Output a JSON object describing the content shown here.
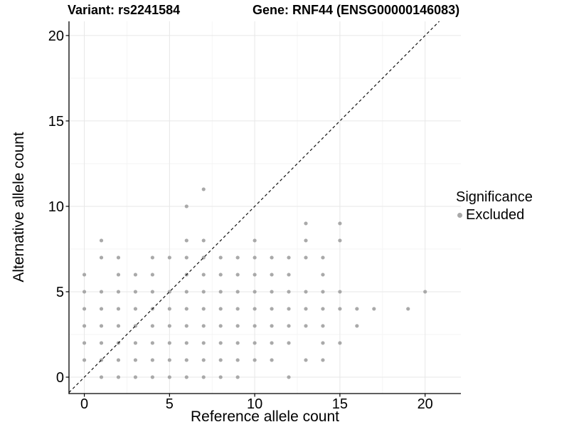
{
  "header": {
    "variant_title": "Variant: rs2241584",
    "gene_title": "Gene: RNF44 (ENSG00000146083)"
  },
  "legend": {
    "title": "Significance",
    "items": [
      {
        "label": "Excluded",
        "color": "#a9a9a9"
      }
    ],
    "position": "right"
  },
  "colors": {
    "point": "#a9a9a9",
    "axis": "#000000",
    "tick_label": "#000000",
    "grid_major": "#e7e7e7",
    "grid_minor": "#f3f3f3",
    "reference_line": "#111111",
    "background": "#ffffff"
  },
  "chart_data": {
    "type": "scatter",
    "title": "Variant: rs2241584 | Gene: RNF44 (ENSG00000146083)",
    "xlabel": "Reference allele count",
    "ylabel": "Alternative allele count",
    "xlim": [
      -0.9,
      22.1
    ],
    "ylim": [
      -0.96,
      20.83
    ],
    "x_ticks": [
      0,
      5,
      10,
      15,
      20
    ],
    "y_ticks": [
      0,
      5,
      10,
      15,
      20
    ],
    "x_minor_ticks": [
      2.5,
      7.5,
      12.5,
      17.5
    ],
    "y_minor_ticks": [
      2.5,
      7.5,
      12.5,
      17.5
    ],
    "grid": true,
    "legend_position": "right",
    "reference_line": {
      "type": "identity",
      "slope": 1,
      "intercept": 0,
      "style": "dashed"
    },
    "series": [
      {
        "name": "Excluded",
        "color": "#a9a9a9",
        "points": [
          [
            1,
            0
          ],
          [
            2,
            0
          ],
          [
            3,
            0
          ],
          [
            4,
            0
          ],
          [
            5,
            0
          ],
          [
            6,
            0
          ],
          [
            7,
            0
          ],
          [
            8,
            0
          ],
          [
            9,
            0
          ],
          [
            12,
            0
          ],
          [
            0,
            1
          ],
          [
            1,
            1
          ],
          [
            2,
            1
          ],
          [
            3,
            1
          ],
          [
            4,
            1
          ],
          [
            5,
            1
          ],
          [
            6,
            1
          ],
          [
            7,
            1
          ],
          [
            8,
            1
          ],
          [
            9,
            1
          ],
          [
            10,
            1
          ],
          [
            11,
            1
          ],
          [
            13,
            1
          ],
          [
            14,
            1
          ],
          [
            0,
            2
          ],
          [
            1,
            2
          ],
          [
            2,
            2
          ],
          [
            3,
            2
          ],
          [
            4,
            2
          ],
          [
            5,
            2
          ],
          [
            6,
            2
          ],
          [
            7,
            2
          ],
          [
            8,
            2
          ],
          [
            9,
            2
          ],
          [
            10,
            2
          ],
          [
            11,
            2
          ],
          [
            12,
            2
          ],
          [
            14,
            2
          ],
          [
            15,
            2
          ],
          [
            0,
            3
          ],
          [
            1,
            3
          ],
          [
            2,
            3
          ],
          [
            3,
            3
          ],
          [
            4,
            3
          ],
          [
            5,
            3
          ],
          [
            6,
            3
          ],
          [
            7,
            3
          ],
          [
            8,
            3
          ],
          [
            9,
            3
          ],
          [
            10,
            3
          ],
          [
            11,
            3
          ],
          [
            12,
            3
          ],
          [
            13,
            3
          ],
          [
            14,
            3
          ],
          [
            16,
            3
          ],
          [
            0,
            4
          ],
          [
            1,
            4
          ],
          [
            2,
            4
          ],
          [
            3,
            4
          ],
          [
            4,
            4
          ],
          [
            5,
            4
          ],
          [
            6,
            4
          ],
          [
            7,
            4
          ],
          [
            8,
            4
          ],
          [
            9,
            4
          ],
          [
            10,
            4
          ],
          [
            11,
            4
          ],
          [
            12,
            4
          ],
          [
            13,
            4
          ],
          [
            14,
            4
          ],
          [
            15,
            4
          ],
          [
            16,
            4
          ],
          [
            17,
            4
          ],
          [
            19,
            4
          ],
          [
            0,
            5
          ],
          [
            1,
            5
          ],
          [
            2,
            5
          ],
          [
            3,
            5
          ],
          [
            4,
            5
          ],
          [
            5,
            5
          ],
          [
            6,
            5
          ],
          [
            7,
            5
          ],
          [
            8,
            5
          ],
          [
            9,
            5
          ],
          [
            10,
            5
          ],
          [
            11,
            5
          ],
          [
            12,
            5
          ],
          [
            13,
            5
          ],
          [
            14,
            5
          ],
          [
            15,
            5
          ],
          [
            20,
            5
          ],
          [
            0,
            6
          ],
          [
            2,
            6
          ],
          [
            3,
            6
          ],
          [
            4,
            6
          ],
          [
            6,
            6
          ],
          [
            7,
            6
          ],
          [
            8,
            6
          ],
          [
            9,
            6
          ],
          [
            10,
            6
          ],
          [
            11,
            6
          ],
          [
            12,
            6
          ],
          [
            14,
            6
          ],
          [
            1,
            7
          ],
          [
            2,
            7
          ],
          [
            4,
            7
          ],
          [
            5,
            7
          ],
          [
            6,
            7
          ],
          [
            7,
            7
          ],
          [
            8,
            7
          ],
          [
            9,
            7
          ],
          [
            10,
            7
          ],
          [
            11,
            7
          ],
          [
            12,
            7
          ],
          [
            13,
            7
          ],
          [
            14,
            7
          ],
          [
            1,
            8
          ],
          [
            6,
            8
          ],
          [
            7,
            8
          ],
          [
            10,
            8
          ],
          [
            13,
            8
          ],
          [
            15,
            8
          ],
          [
            13,
            9
          ],
          [
            15,
            9
          ],
          [
            6,
            10
          ],
          [
            7,
            11
          ]
        ]
      }
    ]
  }
}
